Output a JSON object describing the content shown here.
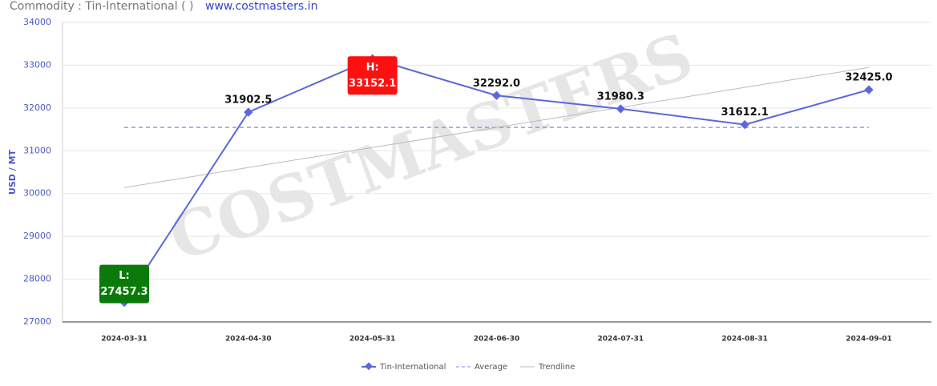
{
  "chart_data": {
    "type": "line",
    "header": "Commodity : Tin-International ( )",
    "site": "www.costmasters.in",
    "watermark": "COSTMASTERS",
    "y_label": "USD / MT",
    "categories": [
      "2024-03-31",
      "2024-04-30",
      "2024-05-31",
      "2024-06-30",
      "2024-07-31",
      "2024-08-31",
      "2024-09-01"
    ],
    "series": [
      {
        "name": "Tin-International",
        "color": "#5b68d9",
        "values": [
          27457.3,
          31902.5,
          33152.1,
          32292.0,
          31980.3,
          31612.1,
          32425.0
        ],
        "value_labels": [
          "27457.3",
          "31902.5",
          "33152.1",
          "32292.0",
          "31980.3",
          "31612.1",
          "32425.0"
        ]
      }
    ],
    "average": {
      "name": "Average",
      "color": "#7b88e0",
      "value": 31545.9
    },
    "trendline": {
      "name": "Trendline",
      "color": "#bbbbbb",
      "values": [
        30140,
        32950
      ]
    },
    "high_label": "H:",
    "low_label": "L:",
    "ylim": [
      27000,
      34000
    ],
    "yticks": [
      27000,
      28000,
      29000,
      30000,
      31000,
      32000,
      33000,
      34000
    ],
    "grid": true
  }
}
